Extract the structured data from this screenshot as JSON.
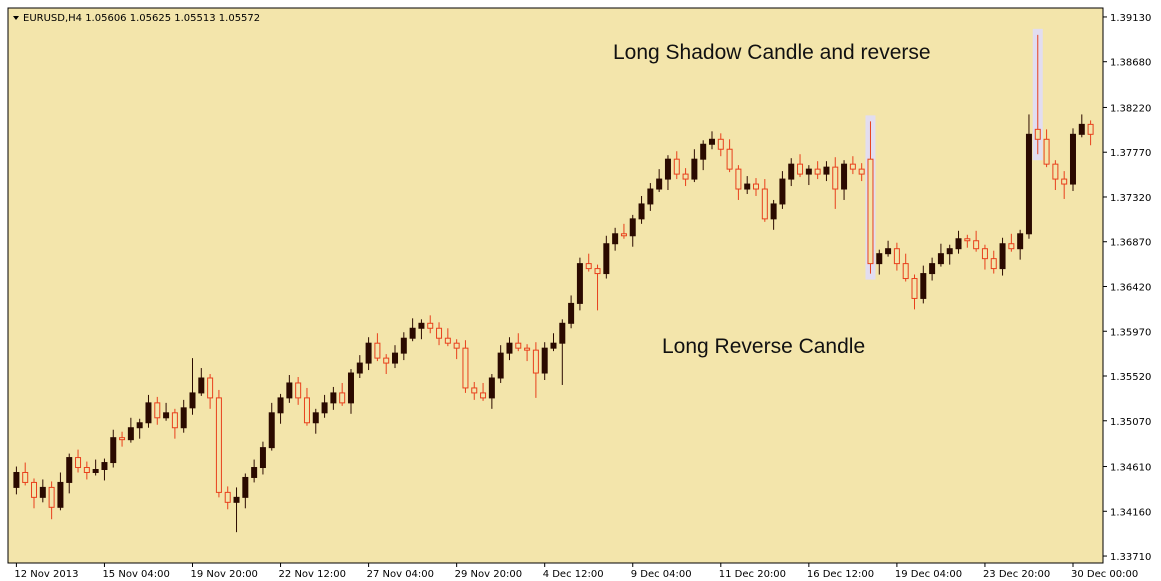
{
  "chart_data": {
    "type": "candlestick",
    "header": "EURUSD,H4  1.05606 1.05625 1.05513 1.05572",
    "annotations": [
      "Long Shadow Candle and reverse",
      "Long Reverse Candle"
    ],
    "highlights": [
      97,
      116
    ],
    "up_color": "#2b0a00",
    "down_color": "#e8401c",
    "background": "#f3e5ab",
    "ylim": [
      1.3364,
      1.3922
    ],
    "yticks": [
      {
        "value": 1.3371,
        "label": "1.33710"
      },
      {
        "value": 1.3416,
        "label": "1.34160"
      },
      {
        "value": 1.3461,
        "label": "1.34610"
      },
      {
        "value": 1.3507,
        "label": "1.35070"
      },
      {
        "value": 1.3552,
        "label": "1.35520"
      },
      {
        "value": 1.3597,
        "label": "1.35970"
      },
      {
        "value": 1.3642,
        "label": "1.36420"
      },
      {
        "value": 1.3687,
        "label": "1.36870"
      },
      {
        "value": 1.3732,
        "label": "1.37320"
      },
      {
        "value": 1.3777,
        "label": "1.37770"
      },
      {
        "value": 1.3822,
        "label": "1.38220"
      },
      {
        "value": 1.3868,
        "label": "1.38680"
      },
      {
        "value": 1.3913,
        "label": "1.39130"
      }
    ],
    "categories": [
      "12 Nov 2013",
      null,
      null,
      null,
      null,
      null,
      null,
      null,
      null,
      null,
      "15 Nov 04:00",
      null,
      null,
      null,
      null,
      null,
      null,
      null,
      null,
      null,
      "19 Nov 20:00",
      null,
      null,
      null,
      null,
      null,
      null,
      null,
      null,
      null,
      "22 Nov 12:00",
      null,
      null,
      null,
      null,
      null,
      null,
      null,
      null,
      null,
      "27 Nov 04:00",
      null,
      null,
      null,
      null,
      null,
      null,
      null,
      null,
      null,
      "29 Nov 20:00",
      null,
      null,
      null,
      null,
      null,
      null,
      null,
      null,
      null,
      "4 Dec 12:00",
      null,
      null,
      null,
      null,
      null,
      null,
      null,
      null,
      null,
      "9 Dec 04:00",
      null,
      null,
      null,
      null,
      null,
      null,
      null,
      null,
      null,
      "11 Dec 20:00",
      null,
      null,
      null,
      null,
      null,
      null,
      null,
      null,
      null,
      "16 Dec 12:00",
      null,
      null,
      null,
      null,
      null,
      null,
      null,
      null,
      null,
      "19 Dec 04:00",
      null,
      null,
      null,
      null,
      null,
      null,
      null,
      null,
      null,
      "23 Dec 20:00",
      null,
      null,
      null,
      null,
      null,
      null,
      null,
      null,
      null,
      "30 Dec 00:00",
      null,
      null
    ],
    "ohlc": [
      [
        1.344,
        1.3461,
        1.3433,
        1.3455
      ],
      [
        1.3455,
        1.3465,
        1.3442,
        1.3445
      ],
      [
        1.3445,
        1.3449,
        1.3419,
        1.343
      ],
      [
        1.343,
        1.3448,
        1.3425,
        1.344
      ],
      [
        1.344,
        1.3446,
        1.3408,
        1.342
      ],
      [
        1.342,
        1.3455,
        1.3417,
        1.3445
      ],
      [
        1.3445,
        1.3474,
        1.3434,
        1.347
      ],
      [
        1.347,
        1.3478,
        1.3455,
        1.346
      ],
      [
        1.346,
        1.3466,
        1.3448,
        1.3455
      ],
      [
        1.3455,
        1.3468,
        1.3452,
        1.3458
      ],
      [
        1.3458,
        1.3469,
        1.3447,
        1.3465
      ],
      [
        1.3465,
        1.3498,
        1.346,
        1.349
      ],
      [
        1.349,
        1.3496,
        1.3481,
        1.3488
      ],
      [
        1.3488,
        1.351,
        1.3485,
        1.35
      ],
      [
        1.35,
        1.3509,
        1.3489,
        1.3505
      ],
      [
        1.3505,
        1.3533,
        1.35,
        1.3525
      ],
      [
        1.3525,
        1.3531,
        1.3503,
        1.351
      ],
      [
        1.351,
        1.3525,
        1.3507,
        1.3515
      ],
      [
        1.3515,
        1.3519,
        1.3489,
        1.35
      ],
      [
        1.35,
        1.3528,
        1.3495,
        1.352
      ],
      [
        1.352,
        1.357,
        1.3513,
        1.3535
      ],
      [
        1.3535,
        1.356,
        1.3532,
        1.355
      ],
      [
        1.355,
        1.3554,
        1.3519,
        1.353
      ],
      [
        1.353,
        1.3538,
        1.343,
        1.3435
      ],
      [
        1.3435,
        1.3441,
        1.3418,
        1.3425
      ],
      [
        1.3425,
        1.344,
        1.3395,
        1.343
      ],
      [
        1.343,
        1.3454,
        1.3419,
        1.345
      ],
      [
        1.345,
        1.3468,
        1.3445,
        1.346
      ],
      [
        1.346,
        1.3486,
        1.3453,
        1.348
      ],
      [
        1.348,
        1.3525,
        1.3477,
        1.3515
      ],
      [
        1.3515,
        1.3534,
        1.3504,
        1.353
      ],
      [
        1.353,
        1.3553,
        1.3525,
        1.3545
      ],
      [
        1.3545,
        1.3551,
        1.3523,
        1.353
      ],
      [
        1.353,
        1.354,
        1.3502,
        1.3505
      ],
      [
        1.3505,
        1.3519,
        1.3494,
        1.3515
      ],
      [
        1.3515,
        1.3533,
        1.351,
        1.3525
      ],
      [
        1.3525,
        1.3541,
        1.3518,
        1.3535
      ],
      [
        1.3535,
        1.3545,
        1.3522,
        1.3525
      ],
      [
        1.3525,
        1.3559,
        1.3514,
        1.3555
      ],
      [
        1.3555,
        1.3573,
        1.355,
        1.3565
      ],
      [
        1.3565,
        1.3591,
        1.3558,
        1.3585
      ],
      [
        1.3585,
        1.3595,
        1.3567,
        1.357
      ],
      [
        1.357,
        1.3574,
        1.3554,
        1.3565
      ],
      [
        1.3565,
        1.3583,
        1.356,
        1.3575
      ],
      [
        1.3575,
        1.3596,
        1.3568,
        1.359
      ],
      [
        1.359,
        1.361,
        1.3587,
        1.36
      ],
      [
        1.36,
        1.3609,
        1.3589,
        1.3605
      ],
      [
        1.3605,
        1.3613,
        1.3595,
        1.36
      ],
      [
        1.36,
        1.3606,
        1.3583,
        1.359
      ],
      [
        1.359,
        1.36,
        1.3582,
        1.3585
      ],
      [
        1.3585,
        1.3589,
        1.3569,
        1.358
      ],
      [
        1.358,
        1.3588,
        1.3535,
        1.354
      ],
      [
        1.354,
        1.3546,
        1.3528,
        1.3535
      ],
      [
        1.3535,
        1.3545,
        1.3527,
        1.353
      ],
      [
        1.353,
        1.3554,
        1.3519,
        1.355
      ],
      [
        1.355,
        1.3583,
        1.3545,
        1.3575
      ],
      [
        1.3575,
        1.3591,
        1.3568,
        1.3585
      ],
      [
        1.3585,
        1.3595,
        1.3577,
        1.358
      ],
      [
        1.358,
        1.3584,
        1.3567,
        1.3578
      ],
      [
        1.3578,
        1.3586,
        1.353,
        1.3555
      ],
      [
        1.3555,
        1.3586,
        1.3548,
        1.358
      ],
      [
        1.358,
        1.3595,
        1.3577,
        1.3585
      ],
      [
        1.3585,
        1.3609,
        1.3543,
        1.3605
      ],
      [
        1.3605,
        1.3633,
        1.36,
        1.3625
      ],
      [
        1.3625,
        1.3671,
        1.3618,
        1.3665
      ],
      [
        1.3665,
        1.3675,
        1.3657,
        1.366
      ],
      [
        1.366,
        1.3664,
        1.3618,
        1.3655
      ],
      [
        1.3655,
        1.3693,
        1.365,
        1.3685
      ],
      [
        1.3685,
        1.3701,
        1.3678,
        1.3695
      ],
      [
        1.3695,
        1.3705,
        1.369,
        1.3693
      ],
      [
        1.3693,
        1.3714,
        1.3682,
        1.371
      ],
      [
        1.371,
        1.3733,
        1.3705,
        1.3725
      ],
      [
        1.3725,
        1.3746,
        1.3718,
        1.374
      ],
      [
        1.374,
        1.376,
        1.3737,
        1.375
      ],
      [
        1.375,
        1.3774,
        1.3739,
        1.377
      ],
      [
        1.377,
        1.3778,
        1.375,
        1.3755
      ],
      [
        1.3755,
        1.3761,
        1.3743,
        1.375
      ],
      [
        1.375,
        1.378,
        1.3747,
        1.377
      ],
      [
        1.377,
        1.3789,
        1.3759,
        1.3785
      ],
      [
        1.3785,
        1.3798,
        1.378,
        1.379
      ],
      [
        1.379,
        1.3796,
        1.3773,
        1.378
      ],
      [
        1.378,
        1.379,
        1.3757,
        1.376
      ],
      [
        1.376,
        1.3764,
        1.3729,
        1.374
      ],
      [
        1.374,
        1.3753,
        1.3735,
        1.3745
      ],
      [
        1.3745,
        1.3751,
        1.3733,
        1.374
      ],
      [
        1.374,
        1.375,
        1.3707,
        1.371
      ],
      [
        1.371,
        1.3729,
        1.3699,
        1.3725
      ],
      [
        1.3725,
        1.3758,
        1.372,
        1.375
      ],
      [
        1.375,
        1.3771,
        1.3743,
        1.3765
      ],
      [
        1.3765,
        1.3775,
        1.3752,
        1.3755
      ],
      [
        1.3755,
        1.3764,
        1.3744,
        1.376
      ],
      [
        1.376,
        1.3768,
        1.375,
        1.3755
      ],
      [
        1.3755,
        1.3768,
        1.3748,
        1.3762
      ],
      [
        1.3762,
        1.3772,
        1.372,
        1.374
      ],
      [
        1.374,
        1.3769,
        1.3729,
        1.3765
      ],
      [
        1.3765,
        1.3773,
        1.3755,
        1.376
      ],
      [
        1.376,
        1.3766,
        1.3748,
        1.3755
      ],
      [
        1.377,
        1.3808,
        1.3655,
        1.3665
      ],
      [
        1.3665,
        1.3679,
        1.3654,
        1.3675
      ],
      [
        1.3675,
        1.3688,
        1.3672,
        1.368
      ],
      [
        1.368,
        1.3686,
        1.3658,
        1.3665
      ],
      [
        1.3665,
        1.3675,
        1.3647,
        1.365
      ],
      [
        1.365,
        1.3654,
        1.3619,
        1.363
      ],
      [
        1.363,
        1.3663,
        1.3625,
        1.3655
      ],
      [
        1.3655,
        1.3671,
        1.3648,
        1.3665
      ],
      [
        1.3665,
        1.3685,
        1.3662,
        1.3675
      ],
      [
        1.3675,
        1.3684,
        1.3664,
        1.368
      ],
      [
        1.368,
        1.3698,
        1.3675,
        1.369
      ],
      [
        1.369,
        1.3694,
        1.3681,
        1.3688
      ],
      [
        1.3688,
        1.3698,
        1.3677,
        1.368
      ],
      [
        1.368,
        1.3684,
        1.3659,
        1.367
      ],
      [
        1.367,
        1.3678,
        1.3655,
        1.366
      ],
      [
        1.366,
        1.3691,
        1.3653,
        1.3685
      ],
      [
        1.3685,
        1.3695,
        1.3677,
        1.368
      ],
      [
        1.368,
        1.3699,
        1.3669,
        1.3695
      ],
      [
        1.3695,
        1.3815,
        1.369,
        1.3795
      ],
      [
        1.38,
        1.3895,
        1.3775,
        1.379
      ],
      [
        1.379,
        1.38,
        1.3762,
        1.3765
      ],
      [
        1.3765,
        1.3769,
        1.3739,
        1.375
      ],
      [
        1.375,
        1.3758,
        1.373,
        1.3745
      ],
      [
        1.3745,
        1.3801,
        1.3738,
        1.3795
      ],
      [
        1.3795,
        1.3815,
        1.3792,
        1.3805
      ],
      [
        1.3805,
        1.3809,
        1.3784,
        1.3795
      ]
    ]
  }
}
